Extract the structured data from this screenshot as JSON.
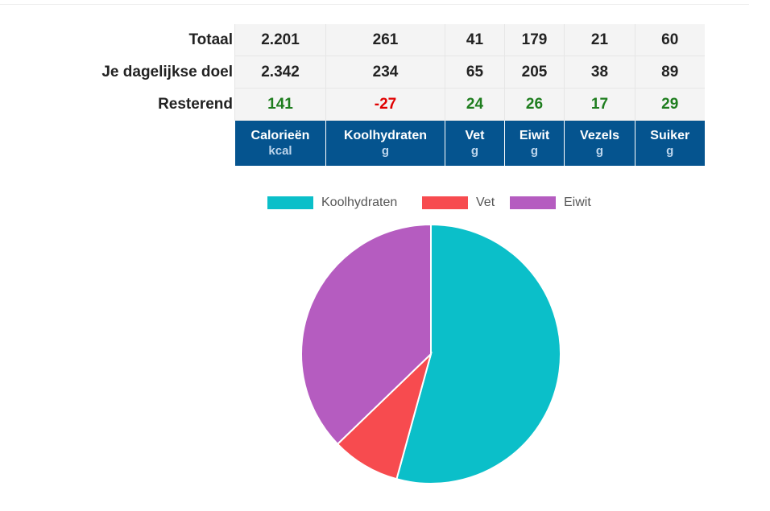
{
  "table": {
    "rows": [
      {
        "label": "Totaal",
        "values": [
          "2.201",
          "261",
          "41",
          "179",
          "21",
          "60"
        ],
        "status": [
          "",
          "",
          "",
          "",
          "",
          ""
        ]
      },
      {
        "label": "Je dagelijkse doel",
        "values": [
          "2.342",
          "234",
          "65",
          "205",
          "38",
          "89"
        ],
        "status": [
          "",
          "",
          "",
          "",
          "",
          ""
        ]
      },
      {
        "label": "Resterend",
        "values": [
          "141",
          "-27",
          "24",
          "26",
          "17",
          "29"
        ],
        "status": [
          "pos",
          "neg",
          "pos",
          "pos",
          "pos",
          "pos"
        ]
      }
    ],
    "columns": [
      {
        "name": "Calorieën",
        "unit": "kcal"
      },
      {
        "name": "Koolhydraten",
        "unit": "g"
      },
      {
        "name": "Vet",
        "unit": "g"
      },
      {
        "name": "Eiwit",
        "unit": "g"
      },
      {
        "name": "Vezels",
        "unit": "g"
      },
      {
        "name": "Suiker",
        "unit": "g"
      }
    ]
  },
  "colors": {
    "header_bg": "#05548f",
    "positive": "#1e7d1e",
    "negative": "#e00000",
    "koolhydraten": "#0bbfc9",
    "vet": "#f74b4f",
    "eiwit": "#b55cc0"
  },
  "chart_data": {
    "type": "pie",
    "legend_position": "top",
    "labels": [
      "Koolhydraten",
      "Vet",
      "Eiwit"
    ],
    "values": [
      261,
      41,
      179
    ],
    "colors": [
      "#0bbfc9",
      "#f74b4f",
      "#b55cc0"
    ]
  }
}
